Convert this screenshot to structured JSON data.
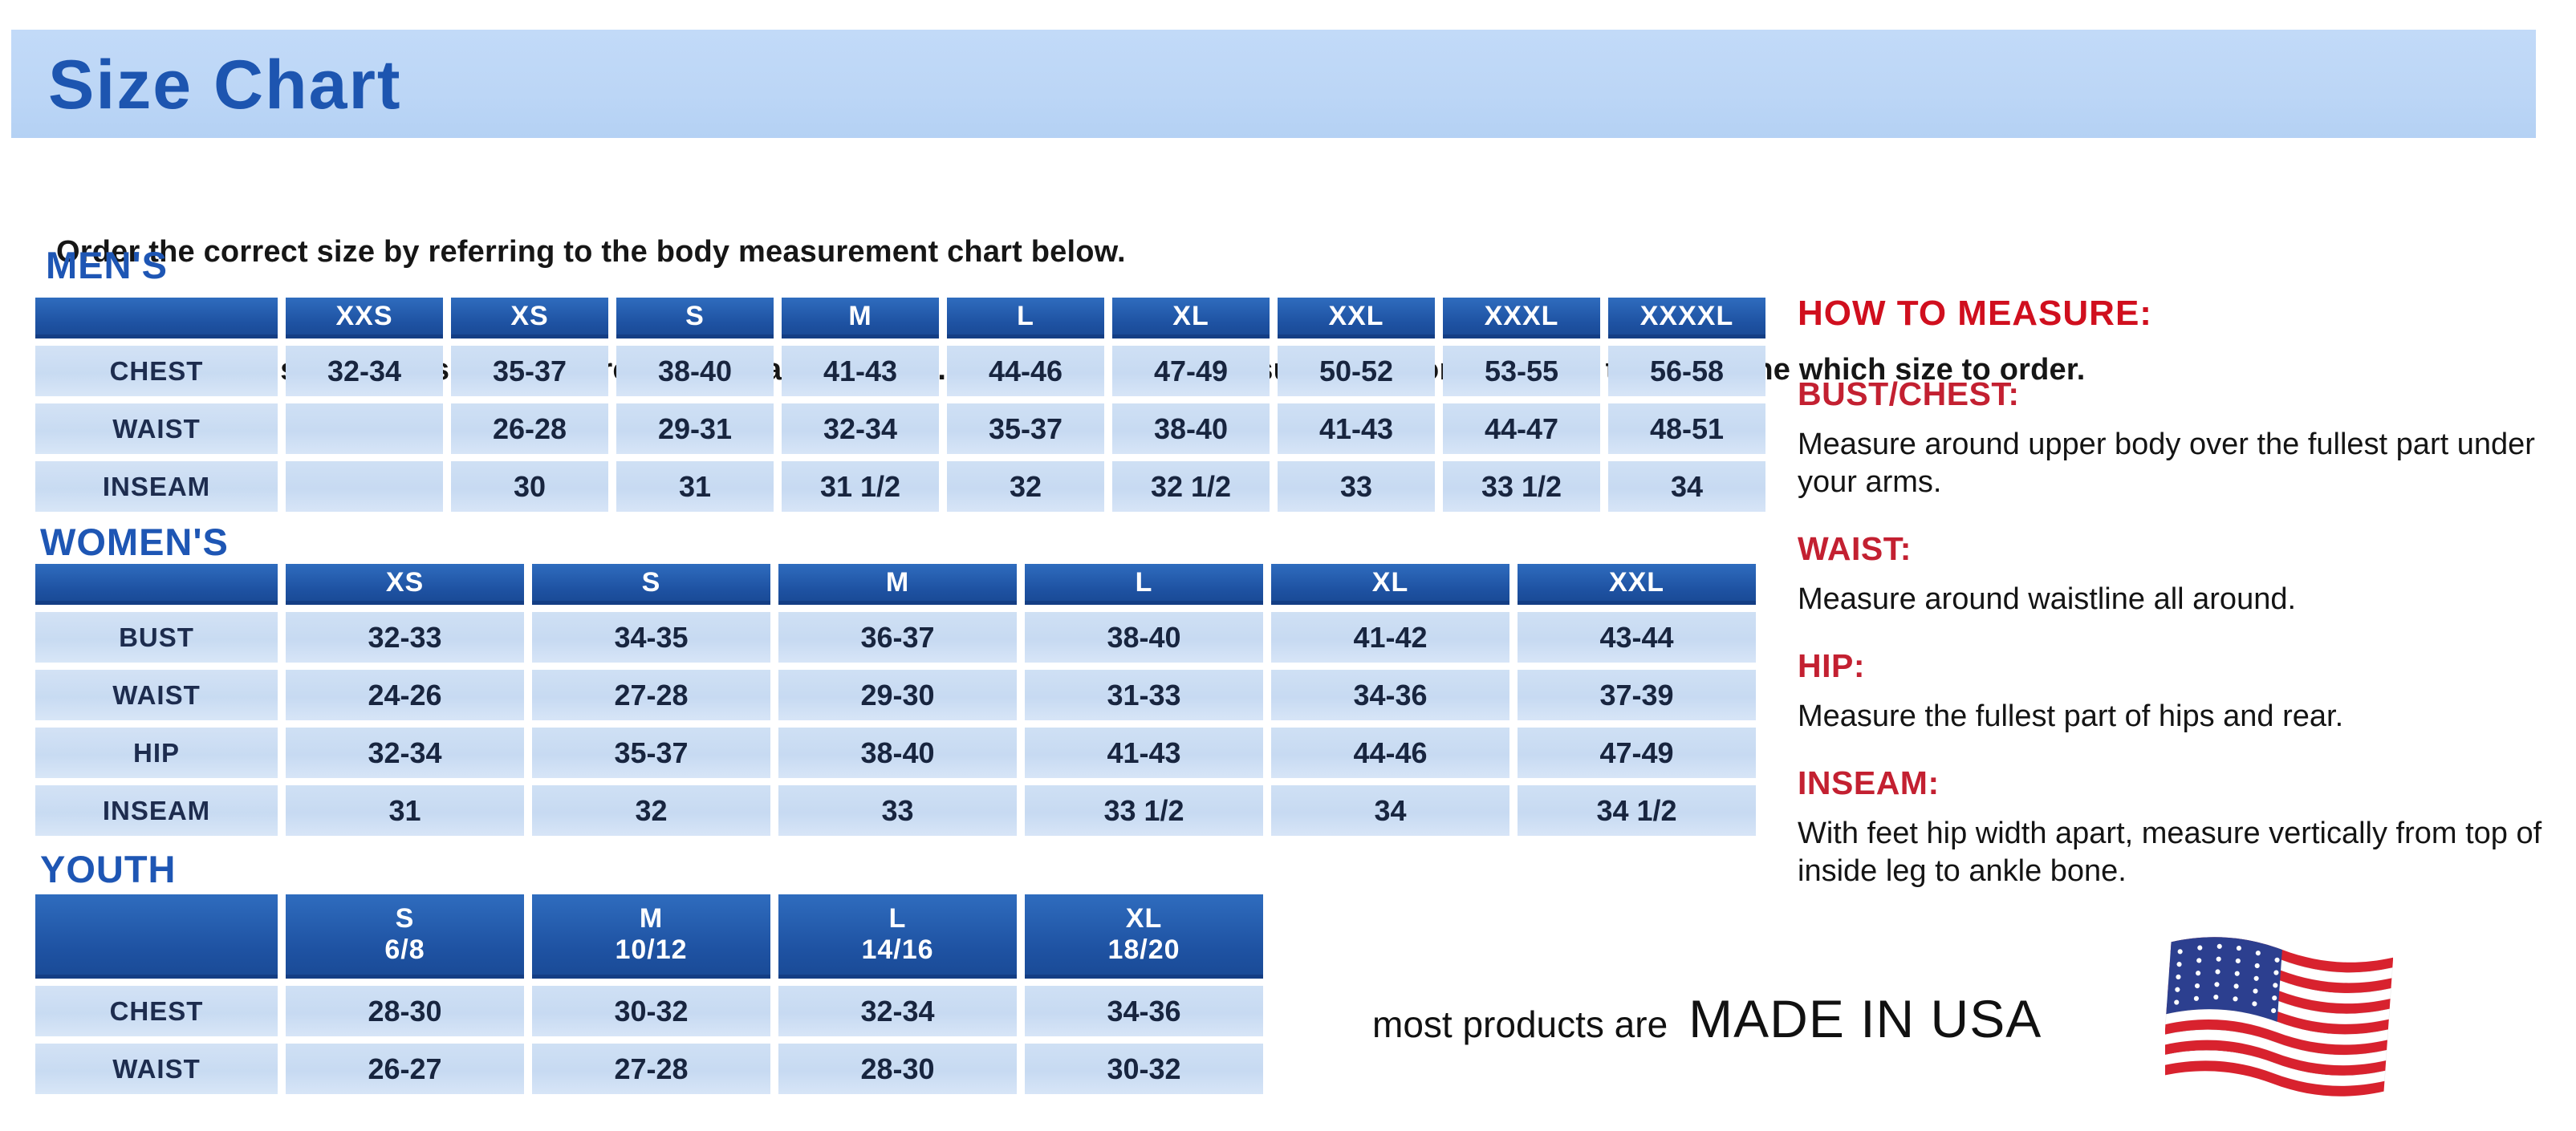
{
  "banner": {
    "title": "Size Chart"
  },
  "intro": {
    "line1": "Order the correct size by referring to the body measurement chart below.",
    "line2": "Measurements shown on size chart are body measurements.  Find your body measurements on the chart to determine which size to order."
  },
  "tables": {
    "mens": {
      "heading": "MEN'S",
      "columns": [
        "XXS",
        "XS",
        "S",
        "M",
        "L",
        "XL",
        "XXL",
        "XXXL",
        "XXXXL"
      ],
      "rows": [
        {
          "label": "CHEST",
          "values": [
            "32-34",
            "35-37",
            "38-40",
            "41-43",
            "44-46",
            "47-49",
            "50-52",
            "53-55",
            "56-58"
          ]
        },
        {
          "label": "WAIST",
          "values": [
            "",
            "26-28",
            "29-31",
            "32-34",
            "35-37",
            "38-40",
            "41-43",
            "44-47",
            "48-51"
          ]
        },
        {
          "label": "INSEAM",
          "values": [
            "",
            "30",
            "31",
            "31 1/2",
            "32",
            "32 1/2",
            "33",
            "33 1/2",
            "34"
          ]
        }
      ]
    },
    "womens": {
      "heading": "WOMEN'S",
      "columns": [
        "XS",
        "S",
        "M",
        "L",
        "XL",
        "XXL"
      ],
      "rows": [
        {
          "label": "BUST",
          "values": [
            "32-33",
            "34-35",
            "36-37",
            "38-40",
            "41-42",
            "43-44"
          ]
        },
        {
          "label": "WAIST",
          "values": [
            "24-26",
            "27-28",
            "29-30",
            "31-33",
            "34-36",
            "37-39"
          ]
        },
        {
          "label": "HIP",
          "values": [
            "32-34",
            "35-37",
            "38-40",
            "41-43",
            "44-46",
            "47-49"
          ]
        },
        {
          "label": "INSEAM",
          "values": [
            "31",
            "32",
            "33",
            "33 1/2",
            "34",
            "34 1/2"
          ]
        }
      ]
    },
    "youth": {
      "heading": "YOUTH",
      "columns": [
        {
          "label": "S",
          "sub": "6/8"
        },
        {
          "label": "M",
          "sub": "10/12"
        },
        {
          "label": "L",
          "sub": "14/16"
        },
        {
          "label": "XL",
          "sub": "18/20"
        }
      ],
      "rows": [
        {
          "label": "CHEST",
          "values": [
            "28-30",
            "30-32",
            "32-34",
            "34-36"
          ]
        },
        {
          "label": "WAIST",
          "values": [
            "26-27",
            "27-28",
            "28-30",
            "30-32"
          ]
        }
      ]
    }
  },
  "how_to_measure": {
    "heading": "HOW TO MEASURE:",
    "items": [
      {
        "label": "BUST/CHEST:",
        "text": "Measure around upper body over the fullest part under your arms."
      },
      {
        "label": "WAIST:",
        "text": "Measure around waistline all around."
      },
      {
        "label": "HIP:",
        "text": "Measure the fullest part of hips and rear."
      },
      {
        "label": "INSEAM:",
        "text": "With feet hip width apart, measure vertically from top of inside leg to ankle bone."
      }
    ]
  },
  "footer": {
    "prefix": "most products are",
    "emphasis": "MADE IN USA",
    "flag_icon": "usa-flag-icon"
  },
  "colors": {
    "banner_bg": "#bcd6f6",
    "title_blue": "#1d55b0",
    "header_cell_blue": "#1e52a2",
    "data_cell_blue": "#cbddf3",
    "heading_red": "#d00f1e",
    "label_red": "#c32031",
    "flag_red": "#d8222e",
    "flag_blue": "#2c3f8f"
  }
}
